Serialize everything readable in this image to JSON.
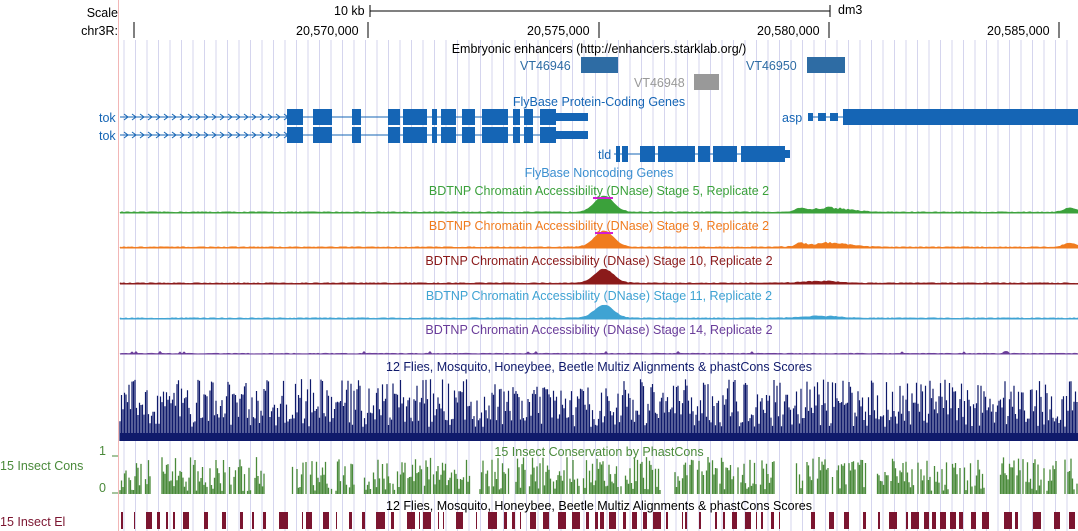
{
  "ruler": {
    "scale_label": "Scale",
    "scale_value": "10 kb",
    "assembly": "dm3",
    "chrom_label": "chr3R:",
    "ticks": [
      "20,570,000",
      "20,575,000",
      "20,580,000",
      "20,585,000"
    ]
  },
  "tracks": {
    "enhancers": {
      "title": "Embryonic enhancers (http://enhancers.starklab.org/)",
      "items": [
        "VT46946",
        "VT46948",
        "VT46950"
      ]
    },
    "protein_coding": {
      "title": "FlyBase Protein-Coding Genes",
      "genes": [
        "tok",
        "tok",
        "asp",
        "tld"
      ]
    },
    "noncoding": {
      "title": "FlyBase Noncoding Genes"
    },
    "dnase": [
      {
        "title": "BDTNP Chromatin Accessibility (DNase) Stage 5, Replicate 2",
        "color": "#3ba13b"
      },
      {
        "title": "BDTNP Chromatin Accessibility (DNase) Stage 9, Replicate 2",
        "color": "#f07b1e"
      },
      {
        "title": "BDTNP Chromatin Accessibility (DNase) Stage 10, Replicate 2",
        "color": "#8b1a1a"
      },
      {
        "title": "BDTNP Chromatin Accessibility (DNase) Stage 11, Replicate 2",
        "color": "#3fa3d3"
      },
      {
        "title": "BDTNP Chromatin Accessibility (DNase) Stage 14, Replicate 2",
        "color": "#6a3d9a"
      }
    ],
    "multiz": {
      "title": "12 Flies, Mosquito, Honeybee, Beetle Multiz Alignments & phastCons Scores",
      "color": "#0f1a6b"
    },
    "phastcons": {
      "title": "15 Insect Conservation by PhastCons",
      "side_label": "15 Insect Cons",
      "y_max": "1",
      "y_min": "0",
      "color": "#4a8a3a"
    },
    "multiz2": {
      "title": "12 Flies, Mosquito, Honeybee, Beetle Multiz Alignments & phastCons Scores"
    },
    "elements": {
      "side_label": "15 Insect El",
      "color": "#7b1530"
    }
  },
  "colors": {
    "gene_blue": "#1565b5",
    "enhancer_blue": "#2e6ca4",
    "enhancer_gray": "#999999",
    "grid": "#d5d5ee",
    "noncoding_label": "#3b8fd0"
  }
}
